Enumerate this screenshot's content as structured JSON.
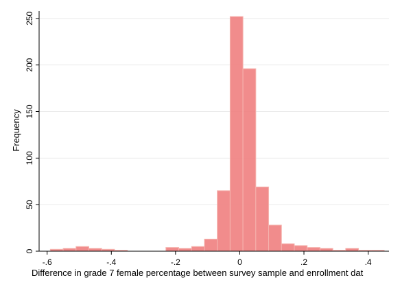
{
  "chart_data": {
    "type": "bar",
    "histogram": true,
    "xlabel": "Difference in grade 7 female percentage between survey sample and enrollment dat",
    "ylabel": "Frequency",
    "xlim": [
      -0.625,
      0.465
    ],
    "ylim": [
      0,
      258
    ],
    "xticks": [
      {
        "value": -0.6,
        "label": "-.6"
      },
      {
        "value": -0.4,
        "label": "-.4"
      },
      {
        "value": -0.2,
        "label": "-.2"
      },
      {
        "value": 0,
        "label": "0"
      },
      {
        "value": 0.2,
        "label": ".2"
      },
      {
        "value": 0.4,
        "label": ".4"
      }
    ],
    "yticks": [
      {
        "value": 0,
        "label": "0"
      },
      {
        "value": 50,
        "label": "50"
      },
      {
        "value": 100,
        "label": "100"
      },
      {
        "value": 150,
        "label": "150"
      },
      {
        "value": 200,
        "label": "200"
      },
      {
        "value": 250,
        "label": "250"
      }
    ],
    "grid": true,
    "bar_color": "#f08080",
    "bar_edge_color": "#f5b5b0",
    "bin_width": 0.04,
    "bins": [
      {
        "x0": -0.59,
        "value": 2
      },
      {
        "x0": -0.55,
        "value": 3
      },
      {
        "x0": -0.51,
        "value": 5
      },
      {
        "x0": -0.47,
        "value": 3
      },
      {
        "x0": -0.43,
        "value": 2
      },
      {
        "x0": -0.39,
        "value": 1
      },
      {
        "x0": -0.35,
        "value": 0
      },
      {
        "x0": -0.31,
        "value": 0
      },
      {
        "x0": -0.27,
        "value": 0
      },
      {
        "x0": -0.23,
        "value": 4
      },
      {
        "x0": -0.19,
        "value": 3
      },
      {
        "x0": -0.15,
        "value": 5
      },
      {
        "x0": -0.11,
        "value": 13
      },
      {
        "x0": -0.07,
        "value": 65
      },
      {
        "x0": -0.03,
        "value": 252
      },
      {
        "x0": 0.01,
        "value": 196
      },
      {
        "x0": 0.05,
        "value": 69
      },
      {
        "x0": 0.09,
        "value": 28
      },
      {
        "x0": 0.13,
        "value": 8
      },
      {
        "x0": 0.17,
        "value": 6
      },
      {
        "x0": 0.21,
        "value": 4
      },
      {
        "x0": 0.25,
        "value": 3
      },
      {
        "x0": 0.29,
        "value": 1
      },
      {
        "x0": 0.33,
        "value": 3
      },
      {
        "x0": 0.37,
        "value": 1
      },
      {
        "x0": 0.41,
        "value": 1
      }
    ]
  }
}
